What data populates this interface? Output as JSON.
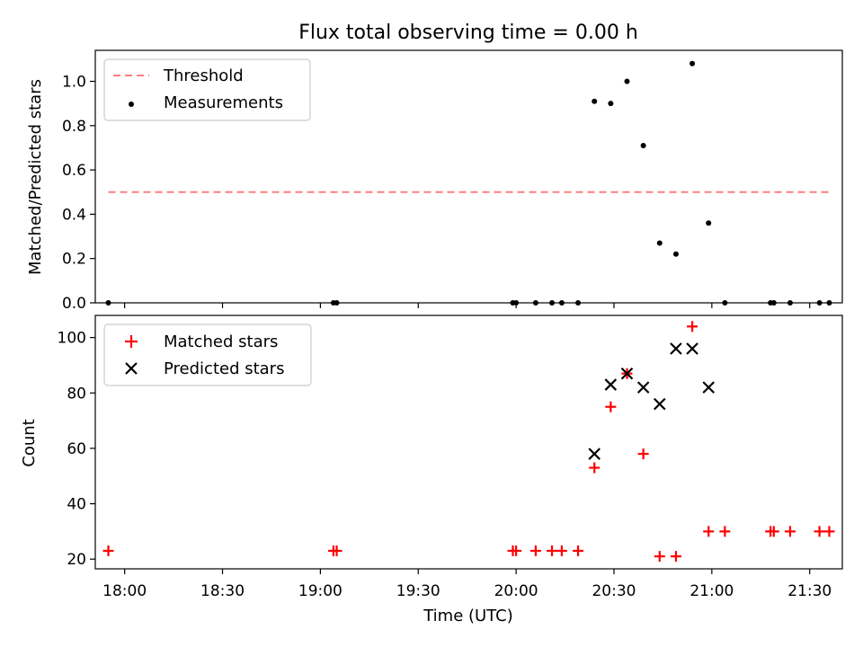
{
  "chart_data": [
    {
      "type": "scatter",
      "title": "Flux total observing time = 0.00 h",
      "xlabel": "",
      "ylabel": "Matched/Predicted stars",
      "xlim": [
        "17:51",
        "21:40"
      ],
      "ylim": [
        0,
        1.14
      ],
      "yticks": [
        "0.0",
        "0.2",
        "0.4",
        "0.6",
        "0.8",
        "1.0"
      ],
      "legend_position": "upper-left",
      "threshold": {
        "name": "Threshold",
        "color": "#ff7f7f",
        "value": 0.5,
        "x_start": "17:55",
        "x_end": "21:36"
      },
      "series": [
        {
          "name": "Measurements",
          "color": "#000000",
          "points": [
            [
              "17:55",
              0.0
            ],
            [
              "19:04",
              0.0
            ],
            [
              "19:05",
              0.0
            ],
            [
              "19:59",
              0.0
            ],
            [
              "20:00",
              0.0
            ],
            [
              "20:06",
              0.0
            ],
            [
              "20:11",
              0.0
            ],
            [
              "20:14",
              0.0
            ],
            [
              "20:19",
              0.0
            ],
            [
              "20:24",
              0.91
            ],
            [
              "20:29",
              0.9
            ],
            [
              "20:34",
              1.0
            ],
            [
              "20:39",
              0.71
            ],
            [
              "20:44",
              0.27
            ],
            [
              "20:49",
              0.22
            ],
            [
              "20:54",
              1.08
            ],
            [
              "20:59",
              0.36
            ],
            [
              "21:04",
              0.0
            ],
            [
              "21:18",
              0.0
            ],
            [
              "21:19",
              0.0
            ],
            [
              "21:24",
              0.0
            ],
            [
              "21:33",
              0.0
            ],
            [
              "21:36",
              0.0
            ]
          ]
        }
      ]
    },
    {
      "type": "scatter",
      "title": "",
      "xlabel": "Time (UTC)",
      "ylabel": "Count",
      "xlim": [
        "17:51",
        "21:40"
      ],
      "ylim": [
        16.5,
        108
      ],
      "yticks": [
        "20",
        "40",
        "60",
        "80",
        "100"
      ],
      "xticks": [
        "18:00",
        "18:30",
        "19:00",
        "19:30",
        "20:00",
        "20:30",
        "21:00",
        "21:30"
      ],
      "legend_position": "upper-left",
      "series": [
        {
          "name": "Matched stars",
          "color": "#ff0000",
          "marker": "plus",
          "points": [
            [
              "17:55",
              23
            ],
            [
              "19:04",
              23
            ],
            [
              "19:05",
              23
            ],
            [
              "19:59",
              23
            ],
            [
              "20:00",
              23
            ],
            [
              "20:06",
              23
            ],
            [
              "20:11",
              23
            ],
            [
              "20:14",
              23
            ],
            [
              "20:19",
              23
            ],
            [
              "20:24",
              53
            ],
            [
              "20:29",
              75
            ],
            [
              "20:34",
              87
            ],
            [
              "20:39",
              58
            ],
            [
              "20:44",
              21
            ],
            [
              "20:49",
              21
            ],
            [
              "20:54",
              104
            ],
            [
              "20:59",
              30
            ],
            [
              "21:04",
              30
            ],
            [
              "21:18",
              30
            ],
            [
              "21:19",
              30
            ],
            [
              "21:24",
              30
            ],
            [
              "21:33",
              30
            ],
            [
              "21:36",
              30
            ]
          ]
        },
        {
          "name": "Predicted stars",
          "color": "#000000",
          "marker": "x",
          "points": [
            [
              "20:24",
              58
            ],
            [
              "20:29",
              83
            ],
            [
              "20:34",
              87
            ],
            [
              "20:39",
              82
            ],
            [
              "20:44",
              76
            ],
            [
              "20:49",
              96
            ],
            [
              "20:54",
              96
            ],
            [
              "20:59",
              82
            ]
          ]
        }
      ]
    }
  ]
}
